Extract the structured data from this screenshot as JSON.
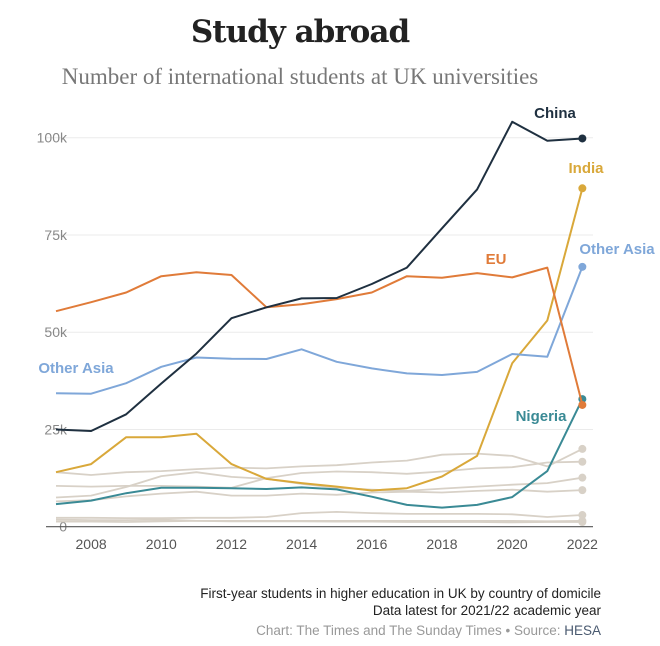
{
  "header": {
    "title": "Study abroad",
    "subtitle": "Number of international students at UK universities"
  },
  "chart_data": {
    "type": "line",
    "title": "Study abroad",
    "subtitle": "Number of international students at UK universities",
    "x": [
      2007,
      2008,
      2009,
      2010,
      2011,
      2012,
      2013,
      2014,
      2015,
      2016,
      2017,
      2018,
      2019,
      2020,
      2021,
      2022
    ],
    "x_ticks": [
      "2008",
      "2010",
      "2012",
      "2014",
      "2016",
      "2018",
      "2020",
      "2022"
    ],
    "y_ticks": [
      "0",
      "25k",
      "50k",
      "75k",
      "100k"
    ],
    "ylim": [
      0,
      100000
    ],
    "grid": true,
    "series": [
      {
        "name": "China",
        "color": "#1f3040",
        "values": [
          25000,
          24600,
          28900,
          36800,
          44500,
          53600,
          56400,
          58700,
          58800,
          62400,
          66600,
          76700,
          86700,
          104100,
          99200,
          99800
        ]
      },
      {
        "name": "EU",
        "color": "#e07b39",
        "values": [
          55400,
          57700,
          60200,
          64400,
          65400,
          64700,
          56400,
          57200,
          58500,
          60200,
          64400,
          64000,
          65200,
          64100,
          66600,
          31300
        ]
      },
      {
        "name": "Other Asia",
        "color": "#7fa7d9",
        "values": [
          34300,
          34200,
          36900,
          41100,
          43500,
          43200,
          43100,
          45600,
          42400,
          40700,
          39400,
          39000,
          39800,
          44400,
          43700,
          66800
        ]
      },
      {
        "name": "India",
        "color": "#d9a83a",
        "values": [
          14000,
          16100,
          23000,
          23000,
          23900,
          16100,
          12300,
          11200,
          10300,
          9300,
          9900,
          12900,
          18200,
          42000,
          53000,
          87000
        ]
      },
      {
        "name": "Nigeria",
        "color": "#3a8a95",
        "values": [
          5800,
          6700,
          8600,
          10000,
          10000,
          9900,
          9700,
          10100,
          9600,
          7700,
          5600,
          4900,
          5600,
          7600,
          14300,
          32800
        ]
      },
      {
        "color": "#d8d1c7",
        "values": [
          14000,
          13300,
          14000,
          14300,
          14800,
          15200,
          15000,
          15500,
          15800,
          16500,
          17000,
          18500,
          18800,
          18200,
          15500,
          20000
        ]
      },
      {
        "color": "#d8d1c7",
        "values": [
          10500,
          10300,
          10500,
          10500,
          10300,
          10000,
          12500,
          13800,
          14200,
          14000,
          13600,
          14200,
          15000,
          15300,
          16500,
          16700
        ]
      },
      {
        "color": "#d8d1c7",
        "values": [
          7500,
          8000,
          10200,
          13000,
          14000,
          12800,
          12300,
          11000,
          10000,
          9500,
          9200,
          9800,
          10300,
          10800,
          11200,
          12600
        ]
      },
      {
        "color": "#d8d1c7",
        "values": [
          6500,
          6800,
          7800,
          8500,
          9000,
          8000,
          8000,
          8500,
          8200,
          8800,
          9000,
          8800,
          9200,
          9500,
          9000,
          9400
        ]
      },
      {
        "color": "#d8d1c7",
        "values": [
          2300,
          2300,
          2200,
          2200,
          2300,
          2300,
          2500,
          3500,
          3800,
          3500,
          3300,
          3300,
          3300,
          3200,
          2500,
          3000
        ]
      },
      {
        "color": "#d8d1c7",
        "values": [
          1300,
          1300,
          1200,
          1400,
          1500,
          1500,
          1500,
          1500,
          1500,
          1500,
          1500,
          1500,
          1500,
          1500,
          1400,
          1500
        ]
      },
      {
        "color": "#d8d1c7",
        "values": [
          1800,
          1700,
          1700,
          1800,
          1500,
          1400,
          1400,
          1400,
          1300,
          1300,
          1200,
          1200,
          1200,
          1100,
          1200,
          1200
        ]
      }
    ],
    "labels": {
      "china": "China",
      "india": "India",
      "eu": "EU",
      "other_asia": "Other Asia",
      "nigeria": "Nigeria"
    }
  },
  "footer": {
    "note1": "First-year students in higher education in UK by country of domicile",
    "note2": "Data latest for 2021/22 academic year",
    "credit": "Chart: The Times and The Sunday Times • Source: ",
    "source": "HESA"
  }
}
